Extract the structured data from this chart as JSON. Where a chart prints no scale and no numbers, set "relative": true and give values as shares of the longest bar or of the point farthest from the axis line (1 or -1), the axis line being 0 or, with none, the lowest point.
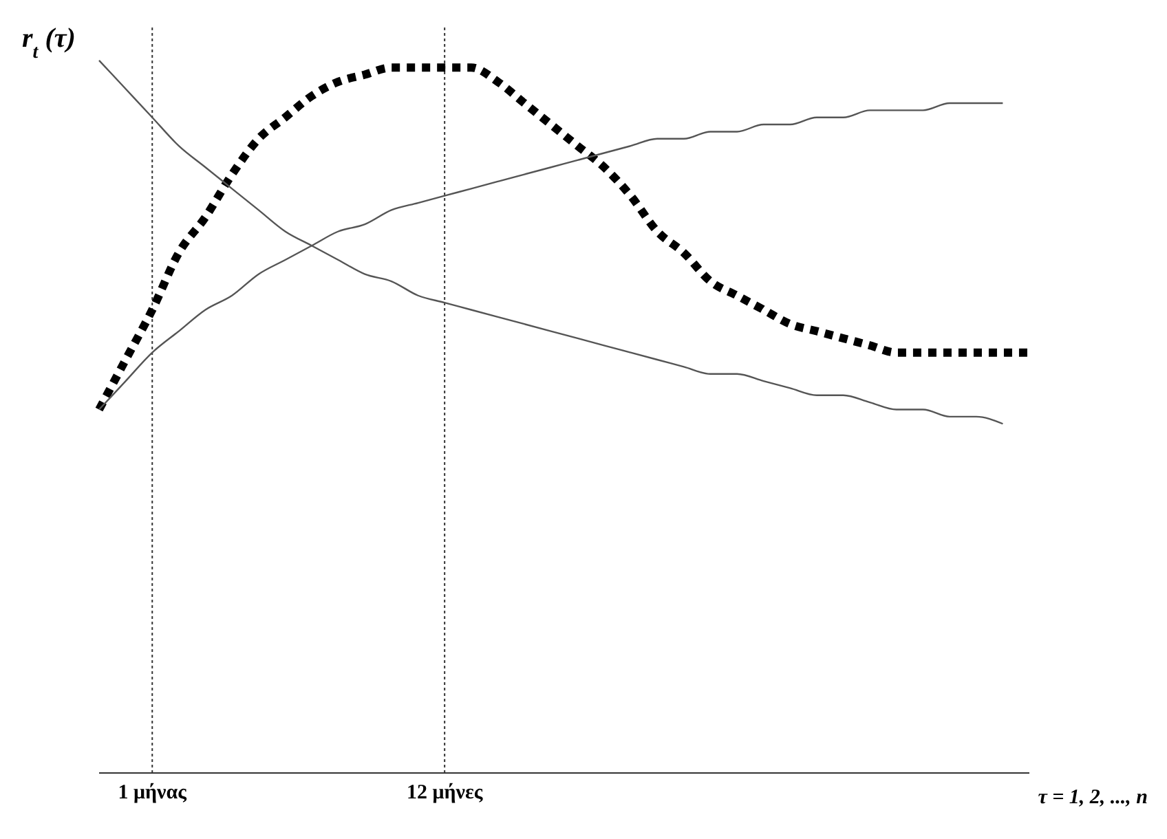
{
  "chart_data": {
    "type": "line",
    "relative": true,
    "ylabel": "r$_{t}$ (τ)",
    "xlabel": "τ = 1, 2, ..., n",
    "categories": [
      null,
      null,
      "1 μήνας",
      null,
      null,
      null,
      null,
      null,
      null,
      null,
      null,
      null,
      null,
      "12 μήνες",
      null,
      null,
      null,
      null,
      null,
      null,
      null,
      null,
      null,
      null,
      null,
      null,
      null,
      null,
      null,
      null,
      null,
      null,
      null,
      null,
      null,
      null
    ],
    "ref_lines": [
      {
        "axis": "x",
        "value": "1 μήνας",
        "line_style": "dotted",
        "color": "#333333"
      },
      {
        "axis": "x",
        "value": "12 μήνες",
        "line_style": "dotted",
        "color": "#333333"
      }
    ],
    "series": [
      {
        "color": "#000000",
        "line_style": "dotted",
        "values": [
          0.51,
          0.58,
          0.65,
          0.73,
          0.78,
          0.84,
          0.89,
          0.92,
          0.95,
          0.97,
          0.98,
          0.99,
          0.99,
          0.99,
          0.99,
          0.97,
          0.94,
          0.91,
          0.88,
          0.85,
          0.81,
          0.76,
          0.73,
          0.69,
          0.67,
          0.65,
          0.63,
          0.62,
          0.61,
          0.6,
          0.59,
          0.59,
          0.59,
          0.59,
          0.59,
          0.59
        ]
      },
      {
        "color": "#555555",
        "line_style": "solid",
        "values": [
          0.51,
          0.55,
          0.59,
          0.62,
          0.65,
          0.67,
          0.7,
          0.72,
          0.74,
          0.76,
          0.77,
          0.79,
          0.8,
          0.81,
          0.82,
          0.83,
          0.84,
          0.85,
          0.86,
          0.87,
          0.88,
          0.89,
          0.89,
          0.9,
          0.9,
          0.91,
          0.91,
          0.92,
          0.92,
          0.93,
          0.93,
          0.93,
          0.94,
          0.94,
          0.94,
          null
        ]
      },
      {
        "color": "#555555",
        "line_style": "solid",
        "values": [
          1.0,
          0.96,
          0.92,
          0.88,
          0.85,
          0.82,
          0.79,
          0.76,
          0.74,
          0.72,
          0.7,
          0.69,
          0.67,
          0.66,
          0.65,
          0.64,
          0.63,
          0.62,
          0.61,
          0.6,
          0.59,
          0.58,
          0.57,
          0.56,
          0.56,
          0.55,
          0.54,
          0.53,
          0.53,
          0.52,
          0.51,
          0.51,
          0.5,
          0.5,
          0.49,
          null
        ]
      }
    ]
  }
}
